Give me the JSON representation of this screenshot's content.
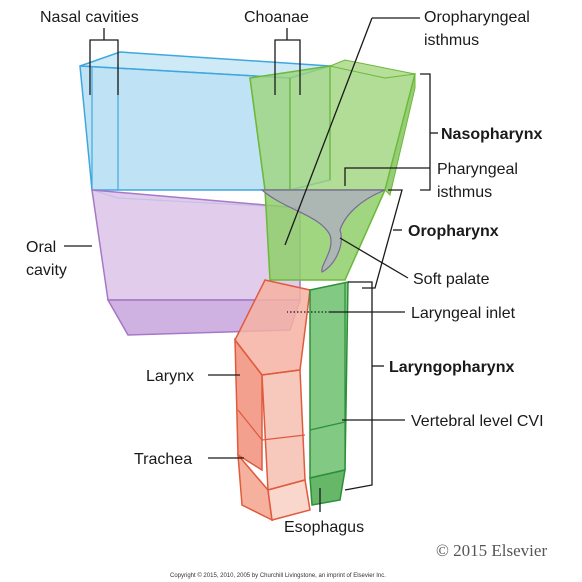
{
  "labels": {
    "nasal_cavities": "Nasal cavities",
    "choanae": "Choanae",
    "oropharyngeal_isthmus_1": "Oropharyngeal",
    "oropharyngeal_isthmus_2": "isthmus",
    "nasopharynx": "Nasopharynx",
    "pharyngeal_isthmus_1": "Pharyngeal",
    "pharyngeal_isthmus_2": "isthmus",
    "oral_cavity_1": "Oral",
    "oral_cavity_2": "cavity",
    "oropharynx": "Oropharynx",
    "soft_palate": "Soft palate",
    "laryngeal_inlet": "Laryngeal inlet",
    "larynx": "Larynx",
    "laryngopharynx": "Laryngopharynx",
    "vertebral_level": "Vertebral level CVI",
    "trachea": "Trachea",
    "esophagus": "Esophagus"
  },
  "copyright": "© 2015 Elsevier",
  "footer": "Copyright © 2015, 2010, 2005 by Churchill Livingstone, an imprint of Elsevier Inc.",
  "colors": {
    "nasal": "#8fd0ea",
    "oral": "#c9a6d8",
    "pharynx": "#8fcf6a",
    "larynx": "#f08a72",
    "esophagus": "#4caf50"
  }
}
